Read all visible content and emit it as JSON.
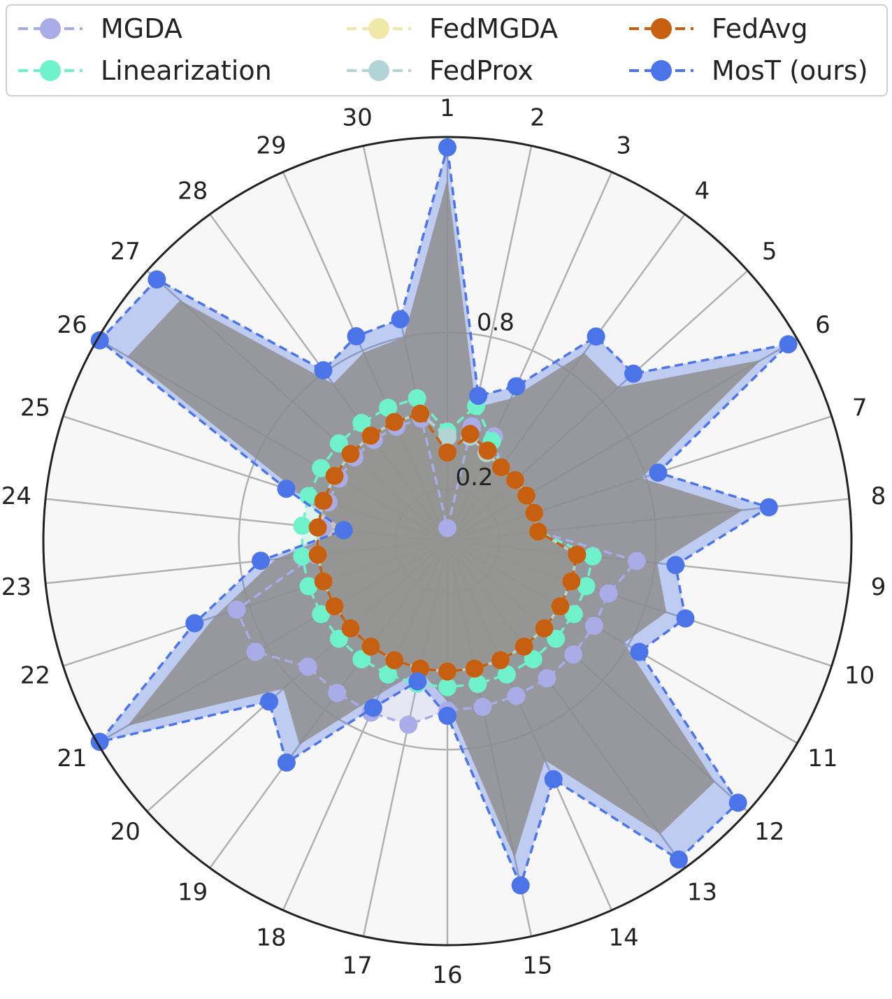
{
  "chart_data": {
    "type": "radar",
    "categories": [
      "1",
      "2",
      "3",
      "4",
      "5",
      "6",
      "7",
      "8",
      "9",
      "10",
      "11",
      "12",
      "13",
      "14",
      "15",
      "16",
      "17",
      "18",
      "19",
      "20",
      "21",
      "22",
      "23",
      "24",
      "25",
      "26",
      "27",
      "28",
      "29",
      "30"
    ],
    "radial_ticks": [
      {
        "value": 0.2,
        "label": "0.2"
      },
      {
        "value": 0.8,
        "label": "0.8"
      }
    ],
    "rlim": [
      0,
      1.55
    ],
    "rgrid_rings": [
      0.2,
      0.8
    ],
    "grid": true,
    "legend": {
      "placement": "top",
      "columns": 3
    },
    "series": [
      {
        "name": "MGDA",
        "color": "#a9ace6",
        "values": [
          0.05,
          0.45,
          0.44,
          0.35,
          0.35,
          0.35,
          0.35,
          0.35,
          0.73,
          0.65,
          0.65,
          0.65,
          0.65,
          0.65,
          0.65,
          0.65,
          0.72,
          0.72,
          0.72,
          0.72,
          0.85,
          0.85,
          0.51,
          0.48,
          0.48,
          0.48,
          0.48,
          0.48,
          0.48,
          0.48
        ]
      },
      {
        "name": "Linearization",
        "color": "#6ff2cc",
        "values": [
          0.42,
          0.53,
          0.42,
          0.35,
          0.35,
          0.35,
          0.35,
          0.35,
          0.56,
          0.56,
          0.56,
          0.56,
          0.56,
          0.56,
          0.56,
          0.56,
          0.56,
          0.56,
          0.56,
          0.56,
          0.56,
          0.56,
          0.56,
          0.56,
          0.56,
          0.56,
          0.56,
          0.56,
          0.56,
          0.56
        ]
      },
      {
        "name": "FedMGDA",
        "color": "#efe8a8",
        "values": [
          0.4,
          0.41,
          0.37,
          0.35,
          0.35,
          0.35,
          0.35,
          0.35,
          0.5,
          0.5,
          0.5,
          0.5,
          0.5,
          0.5,
          0.5,
          0.5,
          0.5,
          0.5,
          0.5,
          0.5,
          0.5,
          0.5,
          0.5,
          0.5,
          0.5,
          0.5,
          0.5,
          0.5,
          0.5,
          0.5
        ]
      },
      {
        "name": "FedProx",
        "color": "#b3d4d4",
        "values": [
          0.4,
          0.41,
          0.37,
          0.35,
          0.35,
          0.35,
          0.35,
          0.35,
          0.5,
          0.5,
          0.5,
          0.5,
          0.5,
          0.5,
          0.5,
          0.5,
          0.5,
          0.5,
          0.5,
          0.5,
          0.5,
          0.5,
          0.5,
          0.5,
          0.5,
          0.5,
          0.5,
          0.5,
          0.5,
          0.5
        ]
      },
      {
        "name": "FedAvg",
        "color": "#c65f0f",
        "values": [
          0.34,
          0.42,
          0.38,
          0.35,
          0.35,
          0.35,
          0.35,
          0.35,
          0.5,
          0.5,
          0.5,
          0.5,
          0.5,
          0.5,
          0.5,
          0.5,
          0.5,
          0.5,
          0.5,
          0.5,
          0.5,
          0.5,
          0.5,
          0.5,
          0.5,
          0.5,
          0.5,
          0.5,
          0.5,
          0.5
        ]
      },
      {
        "name": "MosT (ours)",
        "color": "#4b74e8",
        "values": [
          1.51,
          0.57,
          0.65,
          0.97,
          0.96,
          1.51,
          0.85,
          1.24,
          0.88,
          0.96,
          0.85,
          1.5,
          1.51,
          1.0,
          1.35,
          0.67,
          0.55,
          0.7,
          1.05,
          0.92,
          1.54,
          1.02,
          0.72,
          0.4,
          0.65,
          1.54,
          1.5,
          0.81,
          0.86,
          0.87
        ]
      }
    ]
  }
}
